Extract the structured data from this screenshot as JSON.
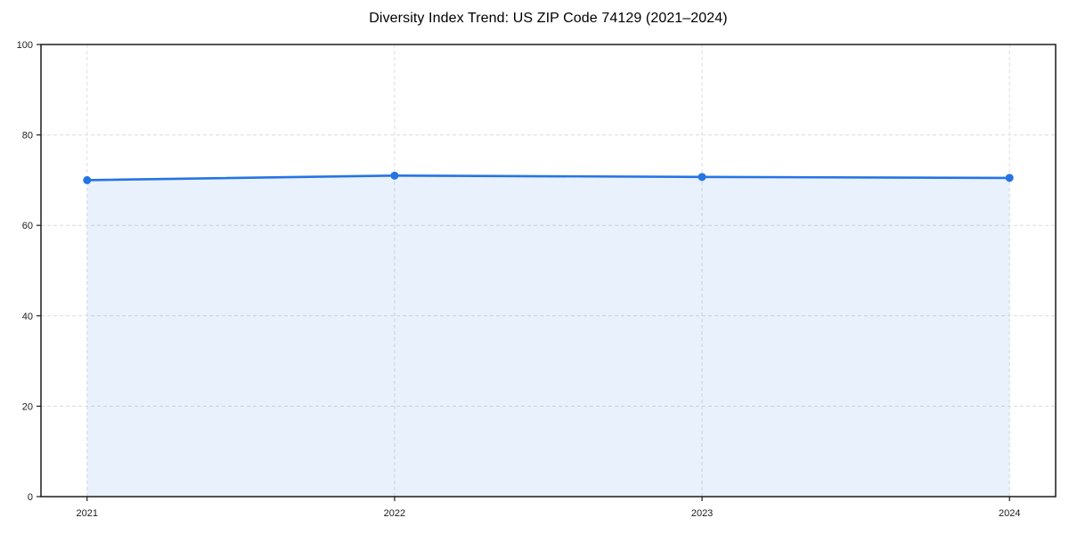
{
  "page": {
    "background": "#ffffff"
  },
  "chart_data": {
    "type": "area",
    "title": "Diversity Index Trend: US ZIP Code 74129 (2021–2024)",
    "x": [
      2021,
      2022,
      2023,
      2024
    ],
    "series": [
      {
        "name": "Diversity Index",
        "values": [
          70.0,
          71.0,
          70.7,
          70.5
        ]
      }
    ],
    "xtick_labels": [
      "2021",
      "2022",
      "2023",
      "2024"
    ],
    "yticks": [
      0,
      20,
      40,
      60,
      80,
      100
    ],
    "ytick_labels": [
      "0",
      "20",
      "40",
      "60",
      "80",
      "100"
    ],
    "xlabel": "",
    "ylabel": "",
    "ylim": [
      0,
      100
    ],
    "x_margin_frac": 0.05,
    "grid": "dashed",
    "grid_on": true,
    "legend_position": "none",
    "colors": {
      "line": "#2574e4",
      "marker": "#2574e4",
      "fill": "rgba(37, 116, 228, 0.10)",
      "grid": "#dcdcdc",
      "frame": "#1b1b1b",
      "tick_label": "#1b1b1b",
      "title": "#000000"
    }
  }
}
